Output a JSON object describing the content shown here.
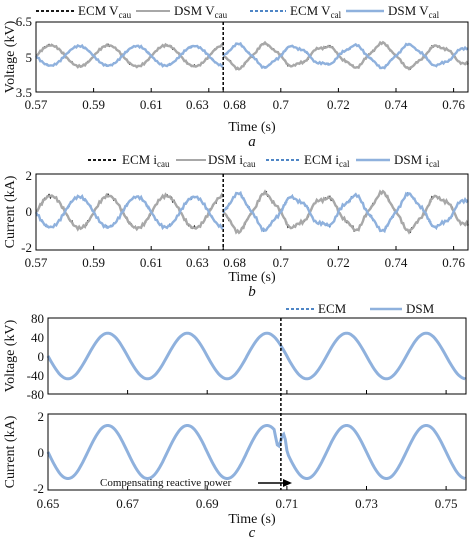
{
  "chart_data": [
    {
      "type": "line",
      "caption": "a",
      "xlabel": "Time (s)",
      "ylabel": "Voltage (kV)",
      "xticks_left": [
        "0.57",
        "0.59",
        "0.61",
        "0.63"
      ],
      "xticks_right": [
        "0.68",
        "0.7",
        "0.72",
        "0.74",
        "0.76"
      ],
      "yticks": [
        "6.5",
        "5",
        "3.5"
      ],
      "ylim": [
        3.5,
        6.5
      ],
      "xlim": [
        0.57,
        0.765
      ],
      "axis_break": [
        0.635,
        0.68
      ],
      "grid": false,
      "legend_placement": "top",
      "series": [
        {
          "name": "ECM Vcau",
          "label_main": "ECM V",
          "label_sub": "cau",
          "color": "#1a1a1a",
          "style": "dotted",
          "amplitude": 0.45,
          "center": 5.05,
          "freq": 50,
          "phase": 3.1
        },
        {
          "name": "DSM Vcau",
          "label_main": "DSM V",
          "label_sub": "cau",
          "color": "#a8a8a8",
          "style": "solid",
          "amplitude": 0.45,
          "center": 5.05,
          "freq": 50,
          "phase": 3.1
        },
        {
          "name": "ECM Vcal",
          "label_main": "ECM V",
          "label_sub": "cal",
          "color": "#4f86c6",
          "style": "dotted",
          "amplitude": 0.42,
          "center": 5.05,
          "freq": 50,
          "phase": 0.0
        },
        {
          "name": "DSM Vcal",
          "label_main": "DSM V",
          "label_sub": "cal",
          "color": "#8fb1dd",
          "style": "solid",
          "amplitude": 0.42,
          "center": 5.05,
          "freq": 50,
          "phase": 0.0
        }
      ]
    },
    {
      "type": "line",
      "caption": "b",
      "xlabel": "Time (s)",
      "ylabel": "Current (kA)",
      "xticks_left": [
        "0.57",
        "0.59",
        "0.61",
        "0.63"
      ],
      "xticks_right": [
        "0.68",
        "0.7",
        "0.72",
        "0.74",
        "0.76"
      ],
      "yticks": [
        "2",
        "0",
        "-2"
      ],
      "ylim": [
        -2,
        2
      ],
      "xlim": [
        0.57,
        0.765
      ],
      "axis_break": [
        0.635,
        0.68
      ],
      "grid": false,
      "legend_placement": "top",
      "series": [
        {
          "name": "ECM icau",
          "label_main": "ECM i",
          "label_sub": "cau",
          "color": "#1a1a1a",
          "style": "dotted",
          "amplitude": 0.85,
          "center": 0.0,
          "freq": 50,
          "phase": 3.1
        },
        {
          "name": "DSM icau",
          "label_main": "DSM i",
          "label_sub": "cau",
          "color": "#a8a8a8",
          "style": "solid",
          "amplitude": 0.85,
          "center": 0.0,
          "freq": 50,
          "phase": 3.1
        },
        {
          "name": "ECM ical",
          "label_main": "ECM i",
          "label_sub": "cal",
          "color": "#4f86c6",
          "style": "dotted",
          "amplitude": 0.8,
          "center": 0.0,
          "freq": 50,
          "phase": 0.0
        },
        {
          "name": "DSM ical",
          "label_main": "DSM i",
          "label_sub": "cal",
          "color": "#8fb1dd",
          "style": "solid",
          "amplitude": 0.8,
          "center": 0.0,
          "freq": 50,
          "phase": 0.0
        }
      ]
    },
    {
      "type": "line",
      "caption": "c",
      "xlabel": "Time (s)",
      "grid": false,
      "legend_placement": "top-right",
      "xlim": [
        0.65,
        0.755
      ],
      "xticks": [
        "0.65",
        "0.67",
        "0.69",
        "0.71",
        "0.73",
        "0.75"
      ],
      "event_time": 0.7085,
      "annotation": "Compensating reactive power",
      "legend": [
        {
          "name": "ECM",
          "color": "#4f86c6",
          "style": "dotted"
        },
        {
          "name": "DSM",
          "color": "#8fb1dd",
          "style": "solid"
        }
      ],
      "panels": [
        {
          "ylabel": "Voltage (kV)",
          "yticks": [
            "80",
            "40",
            "0",
            "-40",
            "-80"
          ],
          "ylim": [
            -80,
            80
          ],
          "amplitude": 48,
          "freq": 50,
          "phase": 0.0
        },
        {
          "ylabel": "Current (kA)",
          "yticks": [
            "2",
            "0",
            "-2"
          ],
          "ylim": [
            -2,
            2
          ],
          "amplitude": 1.4,
          "freq": 50,
          "phase": 0.0
        }
      ]
    }
  ]
}
